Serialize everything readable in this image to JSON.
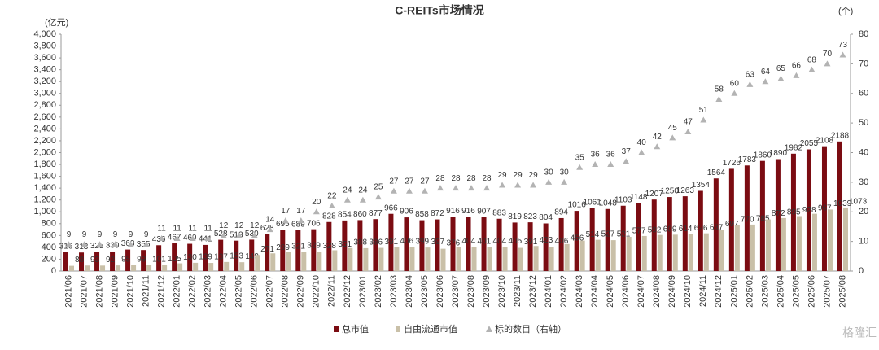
{
  "chart_data": {
    "type": "bar_line",
    "title": "C-REITs市场情况",
    "y_unit": "(亿元)",
    "y2_unit": "(个)",
    "watermark": "格隆汇",
    "categories": [
      "2021/06",
      "2021/07",
      "2021/08",
      "2021/09",
      "2021/10",
      "2021/11",
      "2021/12",
      "2022/01",
      "2022/02",
      "2022/03",
      "2022/04",
      "2022/05",
      "2022/06",
      "2022/07",
      "2022/08",
      "2022/09",
      "2022/10",
      "2022/11",
      "2022/12",
      "2023/01",
      "2023/02",
      "2023/03",
      "2023/04",
      "2023/05",
      "2023/06",
      "2023/07",
      "2023/08",
      "2023/09",
      "2023/10",
      "2023/11",
      "2023/12",
      "2024/01",
      "2024/02",
      "2024/03",
      "2024/04",
      "2024/05",
      "2024/06",
      "2024/07",
      "2024/08",
      "2024/09",
      "2024/10",
      "2024/11",
      "2024/12",
      "2025/01",
      "2025/02",
      "2025/03",
      "2025/04",
      "2025/05",
      "2025/06",
      "2025/07",
      "2025/08"
    ],
    "series": [
      {
        "name": "总市值",
        "kind": "bar",
        "color": "#7b0c12",
        "values": [
          316,
          313,
          325,
          330,
          363,
          355,
          436,
          467,
          460,
          441,
          528,
          513,
          530,
          628,
          695,
          689,
          706,
          828,
          854,
          860,
          877,
          966,
          906,
          858,
          872,
          916,
          916,
          907,
          883,
          819,
          823,
          804,
          894,
          1016,
          1061,
          1048,
          1103,
          1148,
          1207,
          1250,
          1263,
          1354,
          1564,
          1726,
          1783,
          1860,
          1890,
          1982,
          2055,
          2108,
          2188
        ]
      },
      {
        "name": "自由流通市值",
        "kind": "bar",
        "color": "#c9c0a8",
        "values": [
          88,
          93,
          92,
          95,
          99,
          101,
          105,
          130,
          139,
          137,
          153,
          149,
          271,
          299,
          321,
          329,
          328,
          351,
          388,
          386,
          391,
          406,
          399,
          397,
          376,
          404,
          401,
          404,
          405,
          391,
          423,
          406,
          456,
          514,
          527,
          521,
          577,
          592,
          609,
          614,
          626,
          637,
          697,
          770,
          785,
          872,
          895,
          928,
          967,
          1039,
          1073
        ]
      },
      {
        "name": "标的数目（右轴）",
        "kind": "scatter",
        "axis": "y2",
        "color": "#b3b3b3",
        "values": [
          9,
          9,
          9,
          9,
          9,
          9,
          11,
          11,
          11,
          11,
          12,
          12,
          12,
          14,
          17,
          17,
          20,
          22,
          24,
          24,
          25,
          27,
          27,
          27,
          28,
          28,
          28,
          28,
          29,
          29,
          29,
          30,
          30,
          35,
          36,
          36,
          37,
          40,
          42,
          45,
          47,
          51,
          58,
          60,
          63,
          64,
          65,
          66,
          68,
          70,
          73
        ]
      }
    ],
    "ylim": [
      0,
      4000
    ],
    "yticks": [
      0,
      200,
      400,
      600,
      800,
      {
        "value": 1000,
        "label": "1,000"
      },
      {
        "value": 1200,
        "label": "1,200"
      },
      {
        "value": 1400,
        "label": "1,400"
      },
      {
        "value": 1600,
        "label": "1,600"
      },
      {
        "value": 1800,
        "label": "1,800"
      },
      {
        "value": 2000,
        "label": "2,000"
      },
      {
        "value": 2200,
        "label": "2,200"
      },
      {
        "value": 2400,
        "label": "2,400"
      },
      {
        "value": 2600,
        "label": "2,600"
      },
      {
        "value": 2800,
        "label": "2,800"
      },
      {
        "value": 3000,
        "label": "3,000"
      },
      {
        "value": 3200,
        "label": "3,200"
      },
      {
        "value": 3400,
        "label": "3,400"
      },
      {
        "value": 3600,
        "label": "3,600"
      },
      {
        "value": 3800,
        "label": "3,800"
      },
      {
        "value": 4000,
        "label": "4,000"
      }
    ],
    "y2lim": [
      0,
      80
    ],
    "y2ticks": [
      0,
      10,
      20,
      30,
      40,
      50,
      60,
      70,
      80
    ],
    "grid": false
  }
}
